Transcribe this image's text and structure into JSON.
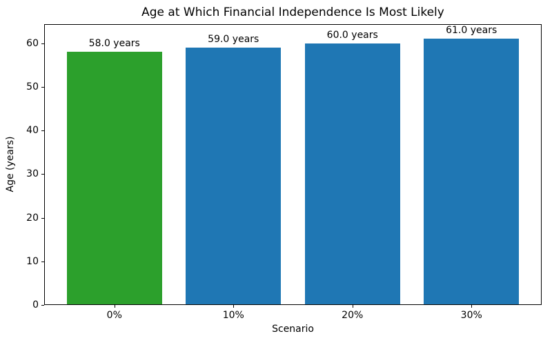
{
  "chart_data": {
    "type": "bar",
    "title": "Age at Which Financial Independence Is Most Likely",
    "xlabel": "Scenario",
    "ylabel": "Age (years)",
    "categories": [
      "0%",
      "10%",
      "20%",
      "30%"
    ],
    "values": [
      58.0,
      59.0,
      60.0,
      61.0
    ],
    "bar_labels": [
      "58.0 years",
      "59.0 years",
      "60.0 years",
      "61.0 years"
    ],
    "bar_colors": [
      "#2ca02c",
      "#1f77b4",
      "#1f77b4",
      "#1f77b4"
    ],
    "ylim": [
      0,
      64.4
    ],
    "yticks": [
      0,
      10,
      20,
      30,
      40,
      50,
      60
    ],
    "bar_width_fraction": 0.8,
    "x_margin_fraction": 0.59,
    "grid": false,
    "legend": "none"
  },
  "figure": {
    "background": "#ffffff",
    "spine_color": "#000000"
  }
}
